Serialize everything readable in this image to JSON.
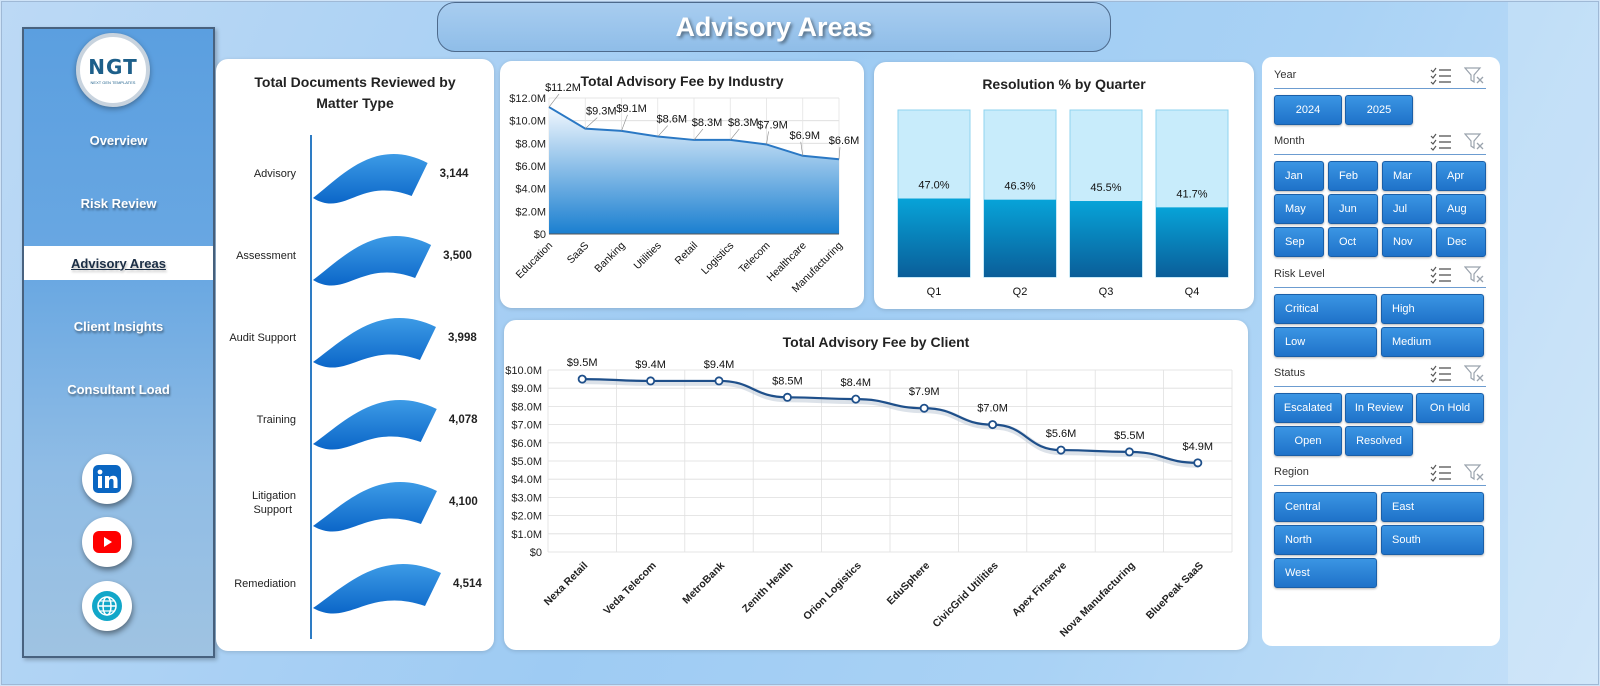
{
  "title": "Advisory Areas",
  "brand": {
    "logo_text": "NGT",
    "logo_sub": "NEXT GEN TEMPLATES"
  },
  "nav": [
    {
      "label": "Overview",
      "active": false
    },
    {
      "label": "Risk Review",
      "active": false
    },
    {
      "label": "Advisory Areas",
      "active": true
    },
    {
      "label": "Client Insights",
      "active": false
    },
    {
      "label": "Consultant Load",
      "active": false
    }
  ],
  "social": [
    {
      "icon": "linkedin-icon"
    },
    {
      "icon": "youtube-icon"
    },
    {
      "icon": "globe-icon"
    }
  ],
  "colors": {
    "accent": "#1f72c9",
    "bar_dark": "#0a7fc0",
    "bar_light": "#c9ecfb",
    "line": "#1e4f8a"
  },
  "charts": {
    "documents": {
      "title_line1": "Total Documents Reviewed by",
      "title_line2": "Matter Type"
    },
    "industry": {
      "title": "Total Advisory Fee by Industry"
    },
    "quarter": {
      "title": "Resolution % by Quarter"
    },
    "client": {
      "title": "Total Advisory Fee by Client"
    }
  },
  "chart_data": [
    {
      "id": "documents",
      "type": "bar",
      "title": "Total Documents Reviewed by Matter Type",
      "categories": [
        "Advisory",
        "Assessment",
        "Audit Support",
        "Training",
        "Litigation Support",
        "Remediation"
      ],
      "values": [
        3144,
        3500,
        3998,
        4078,
        4100,
        4514
      ],
      "value_labels": [
        "3,144",
        "3,500",
        "3,998",
        "4,078",
        "4,100",
        "4,514"
      ]
    },
    {
      "id": "industry",
      "type": "area",
      "title": "Total Advisory Fee by Industry",
      "categories": [
        "Education",
        "SaaS",
        "Banking",
        "Utilities",
        "Retail",
        "Logistics",
        "Telecom",
        "Healthcare",
        "Manufacturing"
      ],
      "values": [
        11.2,
        9.3,
        9.1,
        8.6,
        8.3,
        8.3,
        7.9,
        6.9,
        6.6
      ],
      "value_labels": [
        "$11.2M",
        "$9.3M",
        "$9.1M",
        "$8.6M",
        "$8.3M",
        "$8.3M",
        "$7.9M",
        "$6.9M",
        "$6.6M"
      ],
      "ylim": [
        0,
        12
      ],
      "yticks": [
        "$0",
        "$2.0M",
        "$4.0M",
        "$6.0M",
        "$8.0M",
        "$10.0M",
        "$12.0M"
      ],
      "grid": true
    },
    {
      "id": "quarter",
      "type": "bar",
      "title": "Resolution % by Quarter",
      "categories": [
        "Q1",
        "Q2",
        "Q3",
        "Q4"
      ],
      "values": [
        47.0,
        46.3,
        45.5,
        41.7
      ],
      "value_labels": [
        "47.0%",
        "46.3%",
        "45.5%",
        "41.7%"
      ],
      "ylim": [
        0,
        100
      ]
    },
    {
      "id": "client",
      "type": "line",
      "title": "Total Advisory Fee by Client",
      "categories": [
        "Nexa Retail",
        "Veda Telecom",
        "MetroBank",
        "Zenith Health",
        "Orion Logistics",
        "EduSphere",
        "CivicGrid Utilities",
        "Apex Finserve",
        "Nova Manufacturing",
        "BluePeak SaaS"
      ],
      "values": [
        9.5,
        9.4,
        9.4,
        8.5,
        8.4,
        7.9,
        7.0,
        5.6,
        5.5,
        4.9
      ],
      "value_labels": [
        "$9.5M",
        "$9.4M",
        "$9.4M",
        "$8.5M",
        "$8.4M",
        "$7.9M",
        "$7.0M",
        "$5.6M",
        "$5.5M",
        "$4.9M"
      ],
      "ylim": [
        0,
        10
      ],
      "yticks": [
        "$0",
        "$1.0M",
        "$2.0M",
        "$3.0M",
        "$4.0M",
        "$5.0M",
        "$6.0M",
        "$7.0M",
        "$8.0M",
        "$9.0M",
        "$10.0M"
      ],
      "grid": true
    }
  ],
  "slicers": [
    {
      "key": "year",
      "title": "Year",
      "options": [
        "2024",
        "2025"
      ]
    },
    {
      "key": "month",
      "title": "Month",
      "options": [
        "Jan",
        "Feb",
        "Mar",
        "Apr",
        "May",
        "Jun",
        "Jul",
        "Aug",
        "Sep",
        "Oct",
        "Nov",
        "Dec"
      ]
    },
    {
      "key": "risk",
      "title": "Risk Level",
      "options": [
        "Critical",
        "High",
        "Low",
        "Medium"
      ]
    },
    {
      "key": "status",
      "title": "Status",
      "options": [
        "Escalated",
        "In Review",
        "On Hold",
        "Open",
        "Resolved"
      ]
    },
    {
      "key": "region",
      "title": "Region",
      "options": [
        "Central",
        "East",
        "North",
        "South",
        "West"
      ]
    }
  ]
}
